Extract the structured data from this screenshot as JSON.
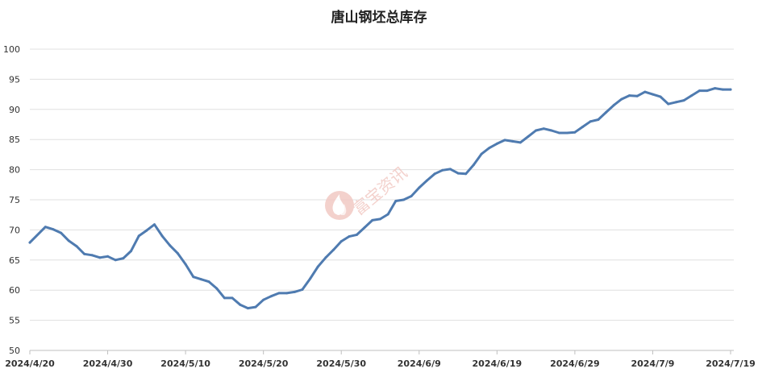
{
  "chart_data": {
    "type": "line",
    "title": "唐山钢坯总库存",
    "xlabel": "",
    "ylabel": "",
    "ylim": [
      50,
      100
    ],
    "yticks": [
      50,
      55,
      60,
      65,
      70,
      75,
      80,
      85,
      90,
      95,
      100
    ],
    "xlim": [
      "2024-04-20",
      "2024-07-19"
    ],
    "xtick_labels": [
      "2024/4/20",
      "2024/4/30",
      "2024/5/10",
      "2024/5/20",
      "2024/5/30",
      "2024/6/9",
      "2024/6/19",
      "2024/6/29",
      "2024/7/9",
      "2024/7/19"
    ],
    "xtick_dates": [
      "2024-04-20",
      "2024-04-30",
      "2024-05-10",
      "2024-05-20",
      "2024-05-30",
      "2024-06-09",
      "2024-06-19",
      "2024-06-29",
      "2024-07-09",
      "2024-07-19"
    ],
    "grid": true,
    "legend": "none",
    "line_color": "#4f7bb0",
    "series": [
      {
        "x": [
          "2024-04-20",
          "2024-04-22",
          "2024-04-23",
          "2024-04-24",
          "2024-04-25",
          "2024-04-26",
          "2024-04-27",
          "2024-04-28",
          "2024-04-29",
          "2024-04-30",
          "2024-05-01",
          "2024-05-02",
          "2024-05-03",
          "2024-05-04",
          "2024-05-05",
          "2024-05-06",
          "2024-05-07",
          "2024-05-08",
          "2024-05-09",
          "2024-05-10",
          "2024-05-11",
          "2024-05-12",
          "2024-05-13",
          "2024-05-14",
          "2024-05-15",
          "2024-05-16",
          "2024-05-17",
          "2024-05-18",
          "2024-05-19",
          "2024-05-20",
          "2024-05-21",
          "2024-05-22",
          "2024-05-23",
          "2024-05-24",
          "2024-05-25",
          "2024-05-26",
          "2024-05-27",
          "2024-05-28",
          "2024-05-29",
          "2024-05-30",
          "2024-05-31",
          "2024-06-01",
          "2024-06-02",
          "2024-06-03",
          "2024-06-04",
          "2024-06-05",
          "2024-06-06",
          "2024-06-07",
          "2024-06-08",
          "2024-06-09",
          "2024-06-10",
          "2024-06-11",
          "2024-06-12",
          "2024-06-13",
          "2024-06-14",
          "2024-06-15",
          "2024-06-16",
          "2024-06-17",
          "2024-06-18",
          "2024-06-19",
          "2024-06-20",
          "2024-06-21",
          "2024-06-22",
          "2024-06-23",
          "2024-06-24",
          "2024-06-25",
          "2024-06-26",
          "2024-06-27",
          "2024-06-28",
          "2024-06-29",
          "2024-06-30",
          "2024-07-01",
          "2024-07-02",
          "2024-07-03",
          "2024-07-04",
          "2024-07-05",
          "2024-07-06",
          "2024-07-07",
          "2024-07-08",
          "2024-07-09",
          "2024-07-10",
          "2024-07-11",
          "2024-07-12",
          "2024-07-13",
          "2024-07-14",
          "2024-07-15",
          "2024-07-16",
          "2024-07-17",
          "2024-07-18",
          "2024-07-19"
        ],
        "y": [
          67.9,
          70.5,
          70.1,
          69.5,
          68.2,
          67.3,
          66.0,
          65.8,
          65.4,
          65.6,
          65.0,
          65.3,
          66.5,
          69.0,
          69.9,
          70.9,
          69.0,
          67.4,
          66.1,
          64.3,
          62.2,
          61.8,
          61.4,
          60.3,
          58.7,
          58.7,
          57.6,
          57.0,
          57.2,
          58.4,
          59.0,
          59.5,
          59.5,
          59.7,
          60.1,
          61.9,
          63.9,
          65.4,
          66.7,
          68.1,
          68.9,
          69.2,
          70.4,
          71.6,
          71.8,
          72.6,
          74.8,
          75.0,
          75.6,
          77.0,
          78.2,
          79.3,
          79.9,
          80.1,
          79.4,
          79.3,
          80.8,
          82.6,
          83.6,
          84.3,
          84.9,
          84.7,
          84.5,
          85.5,
          86.5,
          86.8,
          86.5,
          86.1,
          86.1,
          86.2,
          87.1,
          88.0,
          88.3,
          89.5,
          90.7,
          91.7,
          92.3,
          92.2,
          92.9,
          92.5,
          92.1,
          90.9,
          91.2,
          91.5,
          92.3,
          93.1,
          93.1,
          93.5,
          93.3,
          93.3
        ]
      }
    ]
  },
  "watermark": {
    "text": "富宝资讯",
    "color": "#f2c9c4",
    "icon": "flame-logo-icon"
  }
}
